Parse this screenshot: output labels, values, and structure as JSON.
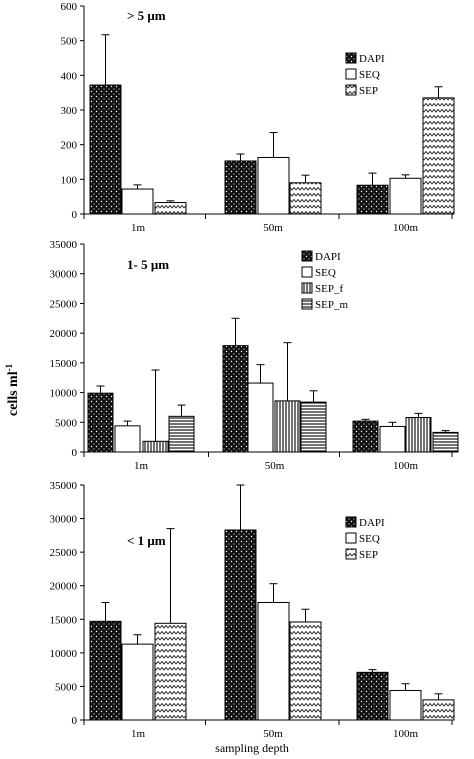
{
  "figure": {
    "ylabel_main": "cells ml",
    "ylabel_sup": "-1",
    "xlabel": "sampling depth"
  },
  "chart_data": [
    {
      "type": "bar",
      "title": "> 5 μm",
      "categories": [
        "1m",
        "50m",
        "100m"
      ],
      "ylim": [
        0,
        600
      ],
      "yticks": [
        0,
        100,
        200,
        300,
        400,
        500,
        600
      ],
      "legend_position": "top-right",
      "series": [
        {
          "name": "DAPI",
          "pattern": "dots",
          "values": [
            372,
            153,
            83
          ],
          "errors": [
            145,
            20,
            35
          ]
        },
        {
          "name": "SEQ",
          "pattern": "none",
          "values": [
            72,
            163,
            103
          ],
          "errors": [
            12,
            72,
            10
          ]
        },
        {
          "name": "SEP",
          "pattern": "zigzag",
          "values": [
            33,
            90,
            335
          ],
          "errors": [
            5,
            22,
            32
          ]
        }
      ]
    },
    {
      "type": "bar",
      "title": "1- 5 μm",
      "categories": [
        "1m",
        "50m",
        "100m"
      ],
      "ylim": [
        0,
        35000
      ],
      "yticks": [
        0,
        5000,
        10000,
        15000,
        20000,
        25000,
        30000,
        35000
      ],
      "legend_position": "top-center",
      "series": [
        {
          "name": "DAPI",
          "pattern": "dots",
          "values": [
            9900,
            17900,
            5200
          ],
          "errors": [
            1200,
            4600,
            300
          ]
        },
        {
          "name": "SEQ",
          "pattern": "none",
          "values": [
            4400,
            11600,
            4300
          ],
          "errors": [
            800,
            3100,
            700
          ]
        },
        {
          "name": "SEP_f",
          "pattern": "vlines",
          "values": [
            1800,
            8600,
            5800
          ],
          "errors": [
            12000,
            9800,
            700
          ]
        },
        {
          "name": "SEP_m",
          "pattern": "hlines",
          "values": [
            6000,
            8400,
            3300
          ],
          "errors": [
            1900,
            1900,
            300
          ]
        }
      ]
    },
    {
      "type": "bar",
      "title": "< 1 μm",
      "categories": [
        "1m",
        "50m",
        "100m"
      ],
      "ylim": [
        0,
        35000
      ],
      "yticks": [
        0,
        5000,
        10000,
        15000,
        20000,
        25000,
        30000,
        35000
      ],
      "legend_position": "top-right",
      "series": [
        {
          "name": "DAPI",
          "pattern": "dots",
          "values": [
            14700,
            28300,
            7100
          ],
          "errors": [
            2800,
            6700,
            400
          ]
        },
        {
          "name": "SEQ",
          "pattern": "none",
          "values": [
            11300,
            17500,
            4400
          ],
          "errors": [
            1400,
            2800,
            1000
          ]
        },
        {
          "name": "SEP",
          "pattern": "zigzag",
          "values": [
            14400,
            14600,
            3000
          ],
          "errors": [
            14100,
            1900,
            900
          ]
        }
      ]
    }
  ]
}
